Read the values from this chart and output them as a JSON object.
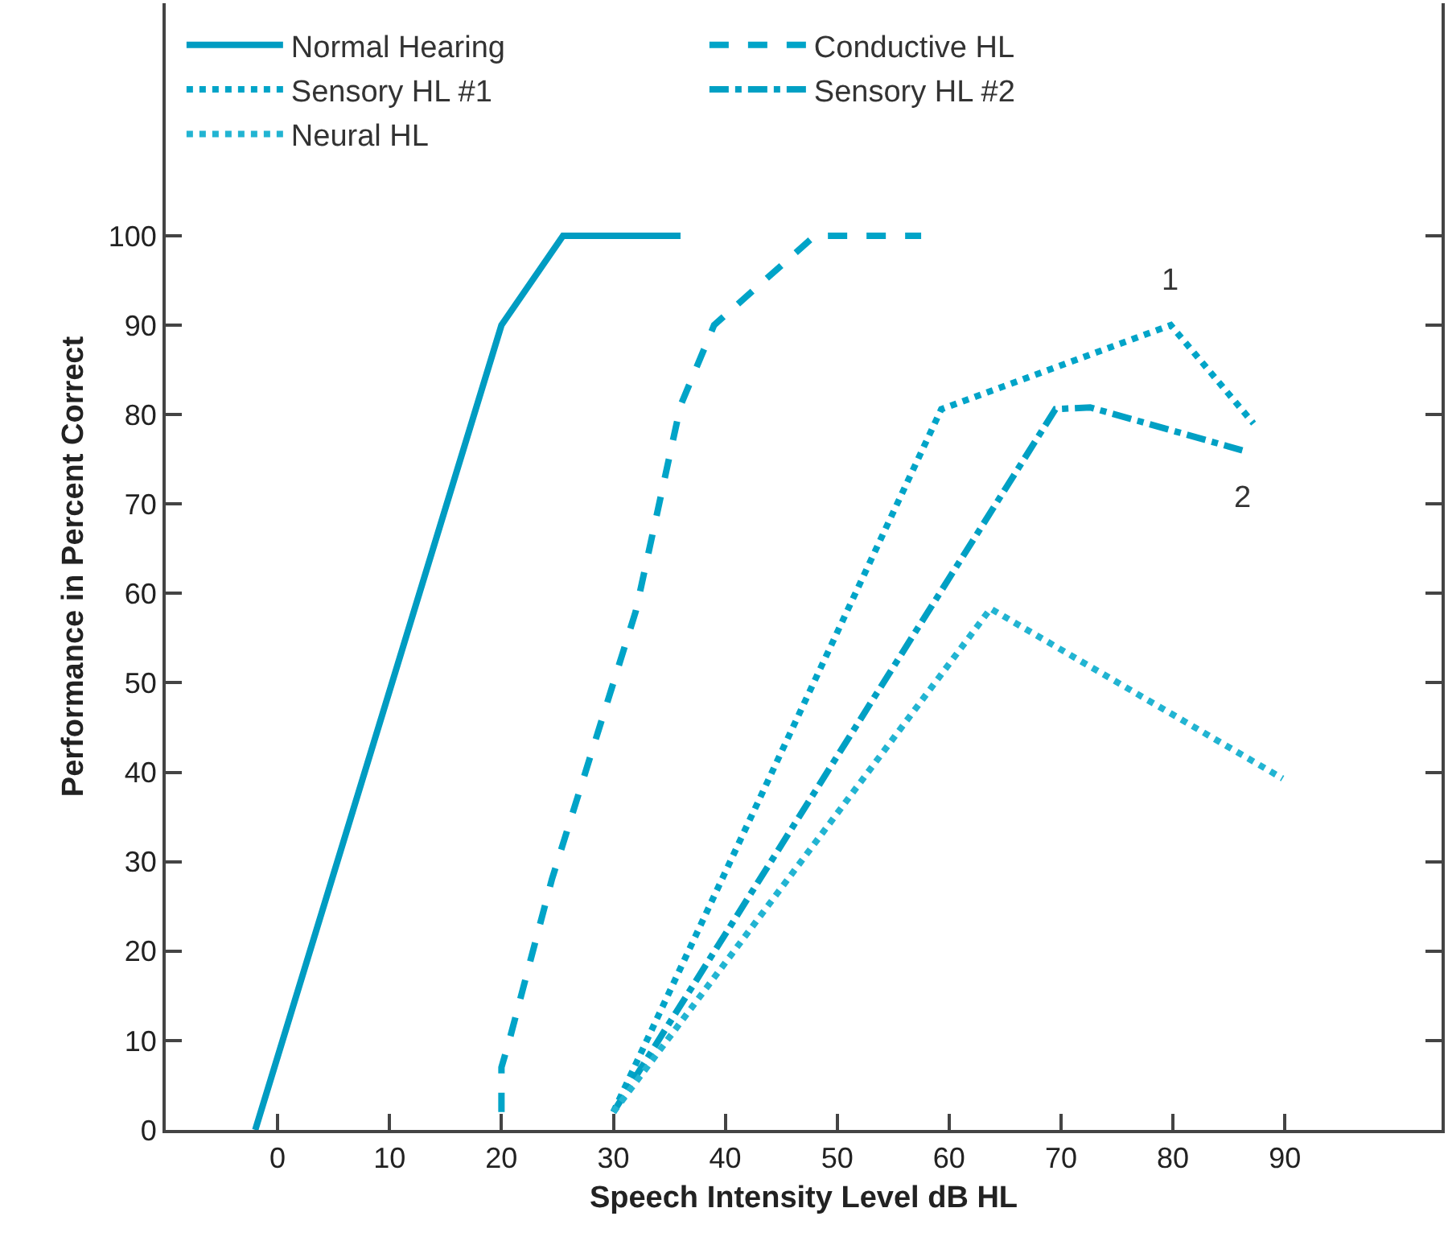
{
  "chart_data": {
    "type": "line",
    "xlabel": "Speech Intensity Level dB HL",
    "ylabel": "Performance in Percent Correct",
    "xlim": [
      -10,
      104
    ],
    "ylim": [
      0,
      126
    ],
    "xticks": [
      0,
      10,
      20,
      30,
      40,
      50,
      60,
      70,
      80,
      90
    ],
    "yticks": [
      0,
      10,
      20,
      30,
      40,
      50,
      60,
      70,
      80,
      90,
      100
    ],
    "legend": "top left",
    "marker": "none",
    "annotations": [
      {
        "text": "1",
        "x": 79.8,
        "y": 90
      },
      {
        "text": "2",
        "x": 86.2,
        "y": 76
      }
    ],
    "series": [
      {
        "name": "Normal Hearing",
        "color": "#009cc2",
        "line_style": "solid",
        "x": [
          -2,
          20,
          25.5,
          36
        ],
        "values": [
          0,
          90,
          100,
          100
        ]
      },
      {
        "name": "Conductive HL",
        "color": "#00a4c8",
        "line_style": "dashed",
        "x": [
          20,
          20,
          20.7,
          24.5,
          32,
          36,
          39,
          48,
          57.5
        ],
        "values": [
          2,
          7,
          10,
          28,
          58,
          81,
          90,
          100,
          100
        ]
      },
      {
        "name": "Sensory HL #1",
        "color": "#00a4c8",
        "line_style": "dotted",
        "x": [
          30,
          59.3,
          79.8,
          87.2
        ],
        "values": [
          2,
          80.6,
          90,
          79
        ]
      },
      {
        "name": "Sensory HL #2",
        "color": "#00a0c4",
        "line_style": "dashdot",
        "x": [
          30,
          69.5,
          72.6,
          86.2
        ],
        "values": [
          2,
          80.6,
          80.8,
          76
        ]
      },
      {
        "name": "Neural HL",
        "color": "#22b4d2",
        "line_style": "dotted",
        "x": [
          30,
          63.7,
          89.8
        ],
        "values": [
          2,
          58.3,
          39.3
        ]
      }
    ]
  }
}
